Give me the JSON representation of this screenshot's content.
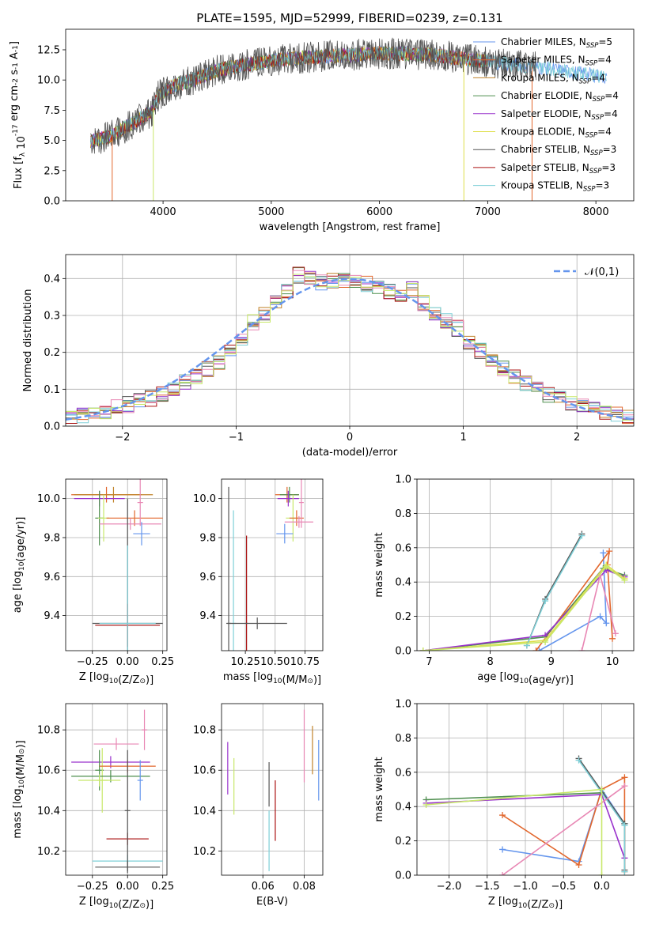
{
  "figure_title": "PLATE=1595, MJD=52999, FIBERID=0239, z=0.131",
  "colors": [
    "#6495ed",
    "#e2672d",
    "#c08329",
    "#4f8f4f",
    "#9932cc",
    "#dede4a",
    "#555555",
    "#aa1111",
    "#7ecfd7",
    "#e887b4",
    "#c8e86a"
  ],
  "chart_data": [
    {
      "id": "spectrum",
      "type": "line",
      "title": "PLATE=1595, MJD=52999, FIBERID=0239, z=0.131",
      "xlabel": "wavelength [Angstrom, rest frame]",
      "ylabel": "Flux [f$_\\lambda$ 10$^{-17}$ erg cm$^{-2}$ s$^{-1}$ A$^{-1}$]",
      "xlim": [
        3100,
        8350
      ],
      "ylim": [
        0,
        14.2
      ],
      "xticks": [
        4000,
        5000,
        6000,
        7000,
        8000
      ],
      "yticks": [
        0.0,
        2.5,
        5.0,
        7.5,
        10.0,
        12.5
      ],
      "data_x": [
        3330,
        3400,
        3500,
        3600,
        3700,
        3800,
        3900,
        3950,
        4000,
        4100,
        4200,
        4300,
        4400,
        4500,
        4600,
        4700,
        4800,
        4900,
        5000,
        5200,
        5400,
        5600,
        5800,
        6000,
        6200,
        6400,
        6600,
        6800,
        7000,
        7200,
        7400,
        7600,
        7800,
        8000,
        8100
      ],
      "data_y": [
        4.9,
        5.1,
        5.3,
        5.8,
        6.3,
        6.9,
        7.4,
        8.6,
        9.0,
        9.6,
        9.8,
        10.1,
        10.4,
        10.8,
        11.0,
        11.2,
        11.3,
        11.4,
        11.6,
        11.8,
        11.9,
        12.0,
        12.1,
        12.2,
        12.2,
        12.1,
        12.0,
        11.7,
        11.5,
        11.3,
        11.1,
        10.9,
        10.6,
        10.4,
        10.2
      ],
      "legend_position": "upper right",
      "legend": [
        {
          "label": "Chabrier MILES, N",
          "sub": "SSP",
          "tail": "=5"
        },
        {
          "label": "Salpeter MILES, N",
          "sub": "SSP",
          "tail": "=4"
        },
        {
          "label": "Kroupa MILES, N",
          "sub": "SSP",
          "tail": "=4"
        },
        {
          "label": "Chabrier ELODIE, N",
          "sub": "SSP",
          "tail": "=4"
        },
        {
          "label": "Salpeter ELODIE, N",
          "sub": "SSP",
          "tail": "=4"
        },
        {
          "label": "Kroupa ELODIE, N",
          "sub": "SSP",
          "tail": "=4"
        },
        {
          "label": "Chabrier STELIB, N",
          "sub": "SSP",
          "tail": "=3"
        },
        {
          "label": "Salpeter STELIB, N",
          "sub": "SSP",
          "tail": "=3"
        },
        {
          "label": "Kroupa STELIB, N",
          "sub": "SSP",
          "tail": "=3"
        }
      ],
      "grid": false
    },
    {
      "id": "residuals",
      "type": "step",
      "xlabel": "(data-model)/error",
      "ylabel": "Normed distribution",
      "xlim": [
        -2.5,
        2.5
      ],
      "ylim": [
        0,
        0.465
      ],
      "xticks": [
        -2,
        -1,
        0,
        1,
        2
      ],
      "yticks": [
        0.0,
        0.1,
        0.2,
        0.3,
        0.4
      ],
      "bin_centers": [
        -2.45,
        -2.35,
        -2.25,
        -2.15,
        -2.05,
        -1.95,
        -1.85,
        -1.75,
        -1.65,
        -1.55,
        -1.45,
        -1.35,
        -1.25,
        -1.15,
        -1.05,
        -0.95,
        -0.85,
        -0.75,
        -0.65,
        -0.55,
        -0.45,
        -0.35,
        -0.25,
        -0.15,
        -0.05,
        0.05,
        0.15,
        0.25,
        0.35,
        0.45,
        0.55,
        0.65,
        0.75,
        0.85,
        0.95,
        1.05,
        1.15,
        1.25,
        1.35,
        1.45,
        1.55,
        1.65,
        1.75,
        1.85,
        1.95,
        2.05,
        2.15,
        2.25,
        2.35,
        2.45
      ],
      "density": [
        0.025,
        0.028,
        0.035,
        0.042,
        0.05,
        0.058,
        0.066,
        0.076,
        0.088,
        0.102,
        0.118,
        0.135,
        0.155,
        0.175,
        0.2,
        0.24,
        0.28,
        0.3,
        0.34,
        0.37,
        0.41,
        0.4,
        0.39,
        0.395,
        0.395,
        0.39,
        0.385,
        0.38,
        0.365,
        0.36,
        0.37,
        0.335,
        0.31,
        0.285,
        0.265,
        0.23,
        0.205,
        0.18,
        0.155,
        0.135,
        0.118,
        0.1,
        0.085,
        0.072,
        0.06,
        0.052,
        0.044,
        0.038,
        0.032,
        0.026
      ],
      "legend_label": "$\\mathcal{N}(0,1)$",
      "legend_position": "upper right",
      "grid": true
    },
    {
      "id": "age-vs-Z",
      "type": "errorbar",
      "xlabel": "Z [log$_{10}$(Z/Z$_\\odot$)]",
      "ylabel": "age  [log$_{10}$(age/yr)]",
      "xlim": [
        -0.44,
        0.28
      ],
      "ylim": [
        9.22,
        10.1
      ],
      "xticks": [
        -0.25,
        0.0,
        0.25
      ],
      "xtick_labels": [
        "-0.25",
        "0.00",
        "0.25"
      ],
      "yticks": [
        9.4,
        9.6,
        9.8,
        10.0
      ],
      "ytick_labels": [
        "9.4",
        "9.6",
        "9.8",
        "10.0"
      ],
      "points": [
        {
          "x": -0.15,
          "y": 10.02,
          "xerr": 0.25,
          "yerr": 0.04,
          "c": 1
        },
        {
          "x": -0.1,
          "y": 10.02,
          "xerr": 0.28,
          "yerr": 0.04,
          "c": 2
        },
        {
          "x": -0.2,
          "y": 10.0,
          "xerr": 0.18,
          "yerr": 0.04,
          "c": 4
        },
        {
          "x": -0.2,
          "y": 9.9,
          "xerr": 0.03,
          "yerr": 0.14,
          "c": 3
        },
        {
          "x": -0.17,
          "y": 9.9,
          "xerr": 0.04,
          "yerr": 0.12,
          "c": 10
        },
        {
          "x": 0.05,
          "y": 9.9,
          "xerr": 0.2,
          "yerr": 0.04,
          "c": 1
        },
        {
          "x": 0.09,
          "y": 9.98,
          "xerr": 0.02,
          "yerr": 0.12,
          "c": 9
        },
        {
          "x": 0.02,
          "y": 9.87,
          "xerr": 0.22,
          "yerr": 0.03,
          "c": 9
        },
        {
          "x": 0.1,
          "y": 9.82,
          "xerr": 0.06,
          "yerr": 0.06,
          "c": 0
        },
        {
          "x": 0.0,
          "y": 9.36,
          "xerr": 0.25,
          "yerr": 0.64,
          "c": 6
        },
        {
          "x": 0.0,
          "y": 9.35,
          "xerr": 0.23,
          "yerr": 0.11,
          "c": 7
        },
        {
          "x": 0.0,
          "y": 9.36,
          "xerr": 0.2,
          "yerr": 0.4,
          "c": 8
        }
      ],
      "grid": true
    },
    {
      "id": "age-vs-mass",
      "type": "errorbar",
      "xlabel": "mass [log$_{10}$(M/M$_\\odot$)]",
      "ylabel": "",
      "xlim": [
        10.05,
        10.9
      ],
      "ylim": [
        9.22,
        10.1
      ],
      "xticks": [
        10.25,
        10.5,
        10.75
      ],
      "xtick_labels": [
        "10.25",
        "10.50",
        "10.75"
      ],
      "yticks": [
        9.4,
        9.6,
        9.8,
        10.0
      ],
      "ytick_labels": [
        "9.4",
        "9.6",
        "9.8",
        "10.0"
      ],
      "points": [
        {
          "x": 10.6,
          "y": 10.02,
          "xerr": 0.1,
          "yerr": 0.04,
          "c": 1
        },
        {
          "x": 10.62,
          "y": 10.02,
          "xerr": 0.08,
          "yerr": 0.04,
          "c": 3
        },
        {
          "x": 10.61,
          "y": 10.0,
          "xerr": 0.09,
          "yerr": 0.04,
          "c": 4
        },
        {
          "x": 10.65,
          "y": 9.9,
          "xerr": 0.06,
          "yerr": 0.12,
          "c": 10
        },
        {
          "x": 10.68,
          "y": 9.9,
          "xerr": 0.06,
          "yerr": 0.04,
          "c": 1
        },
        {
          "x": 10.72,
          "y": 9.98,
          "xerr": 0.02,
          "yerr": 0.13,
          "c": 9
        },
        {
          "x": 10.7,
          "y": 9.88,
          "xerr": 0.12,
          "yerr": 0.03,
          "c": 9
        },
        {
          "x": 10.58,
          "y": 9.82,
          "xerr": 0.07,
          "yerr": 0.05,
          "c": 0
        },
        {
          "x": 10.11,
          "y": 9.36,
          "xerr": 0.02,
          "yerr": 0.7,
          "c": 6
        },
        {
          "x": 10.26,
          "y": 9.36,
          "xerr": 0.01,
          "yerr": 0.45,
          "c": 7
        },
        {
          "x": 10.15,
          "y": 9.36,
          "xerr": 0.02,
          "yerr": 0.58,
          "c": 8
        },
        {
          "x": 10.35,
          "y": 9.36,
          "xerr": 0.25,
          "yerr": 0.03,
          "c": 6
        }
      ],
      "grid": true
    },
    {
      "id": "massweight-vs-age",
      "type": "line",
      "xlabel": "age  [log$_{10}$(age/yr)]",
      "ylabel": "mass weight",
      "xlim": [
        6.8,
        10.35
      ],
      "ylim": [
        0,
        1.0
      ],
      "xticks": [
        7,
        8,
        9,
        10
      ],
      "yticks": [
        0.0,
        0.2,
        0.4,
        0.6,
        0.8,
        1.0
      ],
      "series": [
        {
          "c": 0,
          "x": [
            8.8,
            9.8,
            9.9,
            9.85
          ],
          "y": [
            0.0,
            0.2,
            0.16,
            0.57
          ]
        },
        {
          "c": 1,
          "x": [
            8.75,
            9.95,
            9.92,
            10.0
          ],
          "y": [
            0.0,
            0.58,
            0.5,
            0.07
          ]
        },
        {
          "c": 3,
          "x": [
            6.9,
            8.9,
            9.85,
            10.2
          ],
          "y": [
            0.0,
            0.08,
            0.48,
            0.44
          ]
        },
        {
          "c": 4,
          "x": [
            6.9,
            8.9,
            9.9,
            10.2
          ],
          "y": [
            0.0,
            0.09,
            0.47,
            0.43
          ]
        },
        {
          "c": 5,
          "x": [
            6.9,
            8.9,
            9.9,
            10.2
          ],
          "y": [
            0.0,
            0.06,
            0.5,
            0.42
          ]
        },
        {
          "c": 6,
          "x": [
            8.6,
            8.9,
            9.5
          ],
          "y": [
            0.03,
            0.3,
            0.68
          ]
        },
        {
          "c": 8,
          "x": [
            8.6,
            8.9,
            9.5
          ],
          "y": [
            0.03,
            0.29,
            0.67
          ]
        },
        {
          "c": 9,
          "x": [
            9.5,
            9.8,
            10.05
          ],
          "y": [
            0.0,
            0.44,
            0.1
          ]
        },
        {
          "c": 10,
          "x": [
            6.9,
            8.9,
            9.9,
            10.2
          ],
          "y": [
            0.0,
            0.05,
            0.49,
            0.41
          ]
        }
      ],
      "grid": true
    },
    {
      "id": "mass-vs-Z",
      "type": "errorbar",
      "xlabel": "Z [log$_{10}$(Z/Z$_\\odot$)]",
      "ylabel": "mass [log$_{10}$(M/M$_\\odot$)]",
      "xlim": [
        -0.44,
        0.28
      ],
      "ylim": [
        10.08,
        10.93
      ],
      "xticks": [
        -0.25,
        0.0,
        0.25
      ],
      "xtick_labels": [
        "-0.25",
        "0.00",
        "0.25"
      ],
      "yticks": [
        10.2,
        10.4,
        10.6,
        10.8
      ],
      "ytick_labels": [
        "10.2",
        "10.4",
        "10.6",
        "10.8"
      ],
      "points": [
        {
          "x": -0.08,
          "y": 10.73,
          "xerr": 0.16,
          "yerr": 0.03,
          "c": 9
        },
        {
          "x": -0.12,
          "y": 10.64,
          "xerr": 0.28,
          "yerr": 0.03,
          "c": 4
        },
        {
          "x": -0.2,
          "y": 10.6,
          "xerr": 0.03,
          "yerr": 0.1,
          "c": 3
        },
        {
          "x": -0.18,
          "y": 10.55,
          "xerr": 0.04,
          "yerr": 0.16,
          "c": 10
        },
        {
          "x": 0.0,
          "y": 10.62,
          "xerr": 0.2,
          "yerr": 0.03,
          "c": 1
        },
        {
          "x": -0.12,
          "y": 10.57,
          "xerr": 0.28,
          "yerr": 0.03,
          "c": 3
        },
        {
          "x": -0.2,
          "y": 10.55,
          "xerr": 0.15,
          "yerr": 0.03,
          "c": 10
        },
        {
          "x": 0.12,
          "y": 10.8,
          "xerr": 0.02,
          "yerr": 0.1,
          "c": 9
        },
        {
          "x": 0.09,
          "y": 10.55,
          "xerr": 0.02,
          "yerr": 0.1,
          "c": 0
        },
        {
          "x": 0.0,
          "y": 10.26,
          "xerr": 0.15,
          "yerr": 0.03,
          "c": 7
        },
        {
          "x": 0.0,
          "y": 10.15,
          "xerr": 0.25,
          "yerr": 0.03,
          "c": 8
        },
        {
          "x": 0.0,
          "y": 10.12,
          "xerr": 0.23,
          "yerr": 0.03,
          "c": 6
        },
        {
          "x": 0.0,
          "y": 10.4,
          "xerr": 0.02,
          "yerr": 0.3,
          "c": 6
        }
      ],
      "grid": true
    },
    {
      "id": "mass-vs-EBV",
      "type": "errorbar",
      "xlabel": "E(B-V)",
      "ylabel": "",
      "xlim": [
        0.04,
        0.089
      ],
      "ylim": [
        10.08,
        10.93
      ],
      "xticks": [
        0.06,
        0.08
      ],
      "xtick_labels": [
        "0.06",
        "0.08"
      ],
      "yticks": [
        10.2,
        10.4,
        10.6,
        10.8
      ],
      "ytick_labels": [
        "10.2",
        "10.4",
        "10.6",
        "10.8"
      ],
      "points": [
        {
          "x": 0.043,
          "y": 10.61,
          "xerr": 0,
          "yerr": 0.13,
          "c": 4
        },
        {
          "x": 0.046,
          "y": 10.52,
          "xerr": 0,
          "yerr": 0.14,
          "c": 10
        },
        {
          "x": 0.063,
          "y": 10.53,
          "xerr": 0,
          "yerr": 0.11,
          "c": 6
        },
        {
          "x": 0.063,
          "y": 10.25,
          "xerr": 0,
          "yerr": 0.15,
          "c": 8
        },
        {
          "x": 0.066,
          "y": 10.4,
          "xerr": 0,
          "yerr": 0.15,
          "c": 7
        },
        {
          "x": 0.08,
          "y": 10.72,
          "xerr": 0,
          "yerr": 0.18,
          "c": 9
        },
        {
          "x": 0.084,
          "y": 10.7,
          "xerr": 0,
          "yerr": 0.12,
          "c": 2
        },
        {
          "x": 0.087,
          "y": 10.6,
          "xerr": 0,
          "yerr": 0.15,
          "c": 0
        }
      ],
      "grid": true
    },
    {
      "id": "massweight-vs-Z",
      "type": "line",
      "xlabel": "Z [log$_{10}$(Z/Z$_\\odot$)]",
      "ylabel": "mass weight",
      "xlim": [
        -2.42,
        0.42
      ],
      "ylim": [
        0,
        1.0
      ],
      "xticks": [
        -2.0,
        -1.5,
        -1.0,
        -0.5,
        0.0
      ],
      "xtick_labels": [
        "-2.0",
        "-1.5",
        "-1.0",
        "-0.5",
        "0.0"
      ],
      "yticks": [
        0.0,
        0.2,
        0.4,
        0.6,
        0.8,
        1.0
      ],
      "series": [
        {
          "c": 0,
          "x": [
            -1.3,
            -0.3,
            0.0,
            0.3
          ],
          "y": [
            0.15,
            0.08,
            0.5,
            0.3
          ]
        },
        {
          "c": 1,
          "x": [
            -1.3,
            -0.3,
            0.0,
            0.3,
            0.3
          ],
          "y": [
            0.35,
            0.06,
            0.5,
            0.57,
            0.02
          ]
        },
        {
          "c": 3,
          "x": [
            -2.3,
            0.0,
            0.3
          ],
          "y": [
            0.44,
            0.48,
            0.3
          ]
        },
        {
          "c": 4,
          "x": [
            -2.3,
            0.0,
            0.3
          ],
          "y": [
            0.42,
            0.47,
            0.1
          ]
        },
        {
          "c": 6,
          "x": [
            -0.3,
            0.3,
            0.3
          ],
          "y": [
            0.68,
            0.3,
            0.03
          ]
        },
        {
          "c": 8,
          "x": [
            -0.3,
            0.3,
            0.3
          ],
          "y": [
            0.67,
            0.29,
            0.02
          ]
        },
        {
          "c": 9,
          "x": [
            -1.3,
            0.3
          ],
          "y": [
            0.0,
            0.52
          ]
        },
        {
          "c": 10,
          "x": [
            -2.3,
            0.0,
            0.0
          ],
          "y": [
            0.41,
            0.5,
            0.0
          ]
        }
      ],
      "grid": true
    }
  ]
}
